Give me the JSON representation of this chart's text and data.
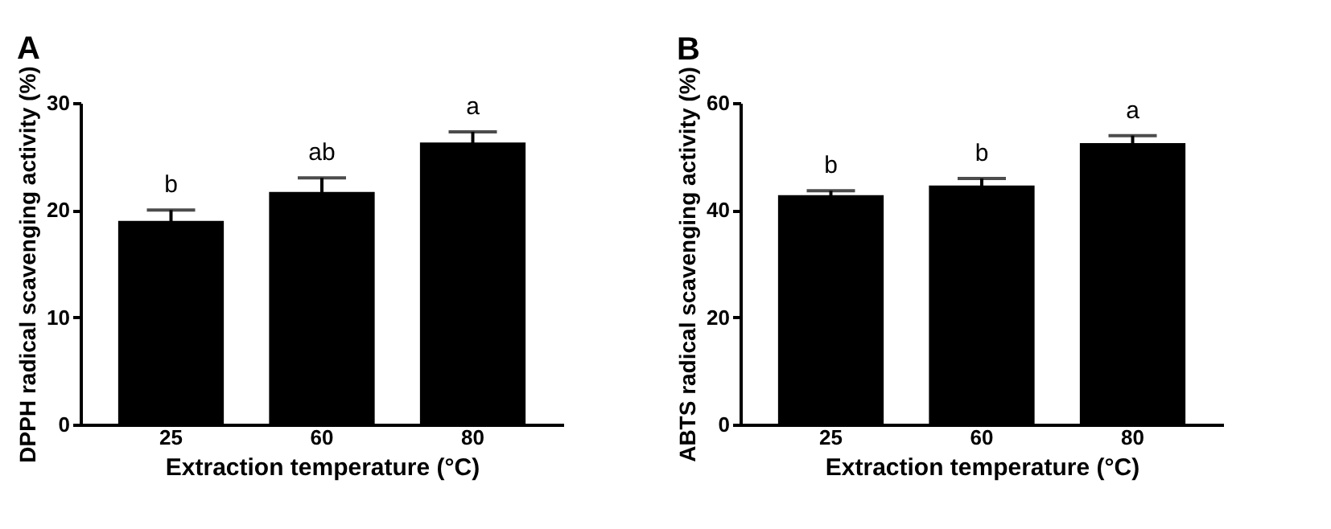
{
  "chart_data": [
    {
      "type": "bar",
      "title": "A",
      "xlabel": "Extraction temperature (°C)",
      "ylabel": "DPPH radical scavenging activity (%)",
      "categories": [
        "25",
        "60",
        "80"
      ],
      "values": [
        19.0,
        21.7,
        26.3
      ],
      "errors": [
        1.0,
        1.3,
        1.0
      ],
      "color": "#000000",
      "ylim": [
        0,
        30
      ],
      "yticks": [
        0,
        10,
        20,
        30
      ],
      "grid": false,
      "annotations": [
        {
          "text": "b",
          "x": "25",
          "y": 20.0
        },
        {
          "text": "ab",
          "x": "60",
          "y": 23.0
        },
        {
          "text": "a",
          "x": "80",
          "y": 27.3
        }
      ]
    },
    {
      "type": "bar",
      "title": "B",
      "xlabel": "Extraction temperature (°C)",
      "ylabel": "ABTS radical scavenging activity (%)",
      "categories": [
        "25",
        "60",
        "80"
      ],
      "values": [
        42.8,
        44.6,
        52.5
      ],
      "errors": [
        0.8,
        1.3,
        1.4
      ],
      "color": "#000000",
      "ylim": [
        0,
        60
      ],
      "yticks": [
        0,
        20,
        40,
        60
      ],
      "grid": false,
      "annotations": [
        {
          "text": "b",
          "x": "25",
          "y": 43.6
        },
        {
          "text": "b",
          "x": "60",
          "y": 45.9
        },
        {
          "text": "a",
          "x": "80",
          "y": 53.9
        }
      ]
    }
  ]
}
